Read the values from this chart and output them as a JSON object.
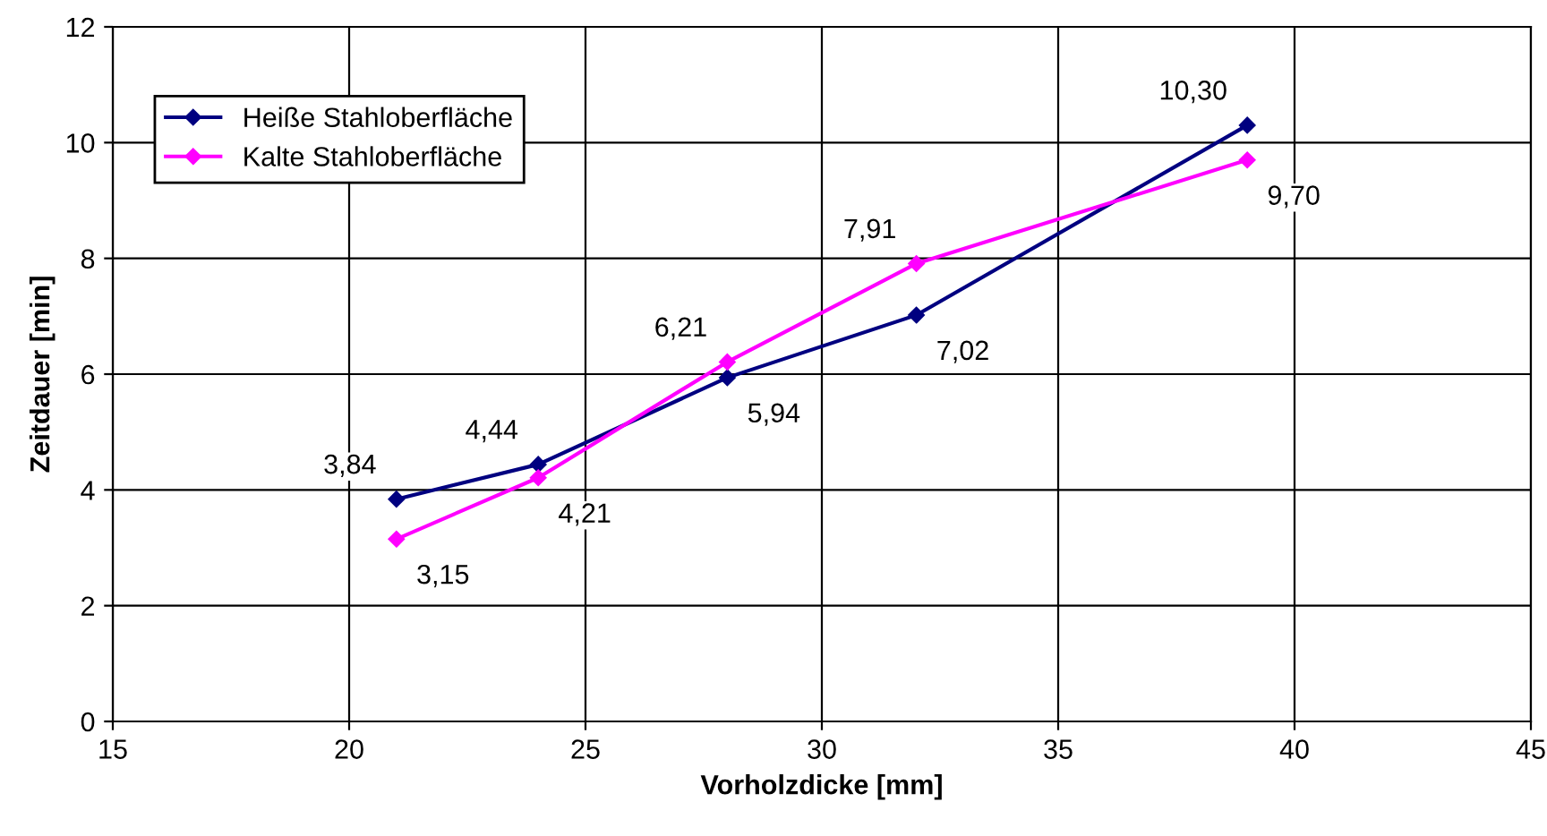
{
  "chart_data": {
    "type": "line",
    "xlabel": "Vorholzdicke [mm]",
    "ylabel": "Zeitdauer [min]",
    "x": [
      21,
      24,
      28,
      32,
      39
    ],
    "series": [
      {
        "name": "Heiße Stahloberfläche",
        "color": "#000080",
        "values": [
          3.84,
          4.44,
          5.94,
          7.02,
          10.3
        ],
        "value_labels": [
          "3,84",
          "4,44",
          "5,94",
          "7,02",
          "10,30"
        ]
      },
      {
        "name": "Kalte Stahloberfläche",
        "color": "#ff00ff",
        "values": [
          3.15,
          4.21,
          6.21,
          7.91,
          9.7
        ],
        "value_labels": [
          "3,15",
          "4,21",
          "6,21",
          "7,91",
          "9,70"
        ]
      }
    ],
    "xlim": [
      15,
      45
    ],
    "xticks": [
      15,
      20,
      25,
      30,
      35,
      40,
      45
    ],
    "ylim": [
      0,
      12
    ],
    "yticks": [
      0,
      2,
      4,
      6,
      8,
      10,
      12
    ],
    "grid": true,
    "legend": "top left",
    "marker": "diamond",
    "line_style": "solid"
  }
}
